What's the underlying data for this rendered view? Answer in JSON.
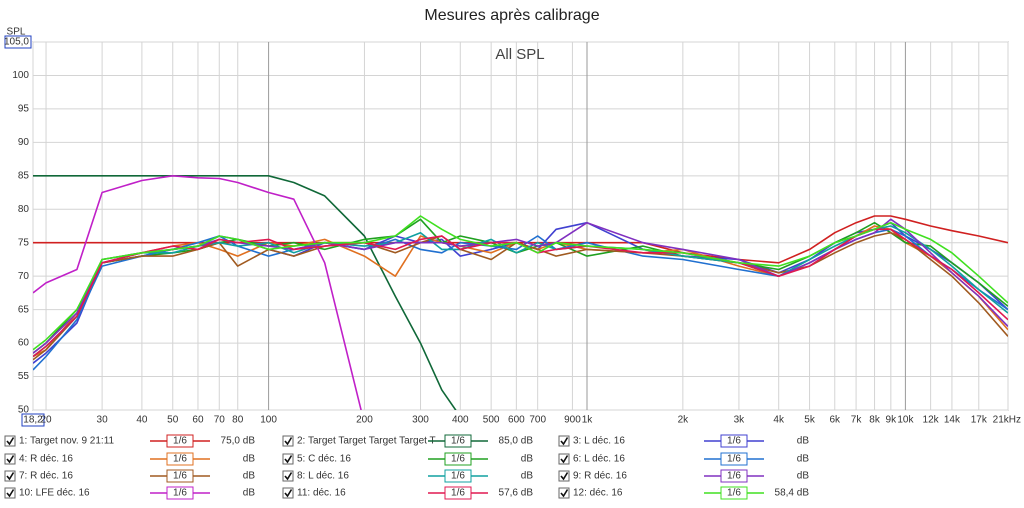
{
  "chart_data": {
    "type": "line",
    "title": "Mesures après calibrage",
    "plot_title": "All SPL",
    "y_label": "SPL",
    "log_x": true,
    "grid": true,
    "xlim": [
      18.2,
      21000
    ],
    "ylim": [
      50,
      105
    ],
    "xticks": [
      {
        "value": 18.2,
        "label": "18,2"
      },
      20,
      30,
      40,
      50,
      60,
      70,
      80,
      100,
      200,
      300,
      400,
      500,
      600,
      700,
      900,
      {
        "value": 1000,
        "label": "1k"
      },
      {
        "value": 2000,
        "label": "2k"
      },
      {
        "value": 3000,
        "label": "3k"
      },
      {
        "value": 4000,
        "label": "4k"
      },
      {
        "value": 5000,
        "label": "5k"
      },
      {
        "value": 6000,
        "label": "6k"
      },
      {
        "value": 7000,
        "label": "7k"
      },
      {
        "value": 8000,
        "label": "8k"
      },
      {
        "value": 9000,
        "label": "9k"
      },
      {
        "value": 10000,
        "label": "10k"
      },
      {
        "value": 12000,
        "label": "12k"
      },
      {
        "value": 14000,
        "label": "14k"
      },
      {
        "value": 17000,
        "label": "17k"
      },
      {
        "value": 21000,
        "label": "21kHz"
      }
    ],
    "yticks": [
      50,
      55,
      60,
      65,
      70,
      75,
      80,
      85,
      90,
      95,
      100,
      {
        "value": 105,
        "label": "105,0"
      }
    ],
    "x": [
      18.2,
      20,
      25,
      30,
      40,
      50,
      60,
      70,
      80,
      100,
      120,
      150,
      200,
      250,
      300,
      350,
      400,
      500,
      600,
      700,
      800,
      1000,
      1500,
      2000,
      3000,
      4000,
      5000,
      6000,
      7000,
      8000,
      9000,
      10000,
      12000,
      14000,
      17000,
      21000
    ],
    "series": [
      {
        "name": "1: Target nov. 9 21:11",
        "color": "#d02020",
        "smoothing": "1/6",
        "level": "75,0 dB",
        "values": [
          75,
          75,
          75,
          75,
          75,
          75,
          75,
          75,
          75,
          75,
          75,
          75,
          75,
          75,
          75,
          75,
          75,
          75,
          75,
          75,
          75,
          75,
          75,
          73.5,
          72.5,
          72,
          74,
          76.5,
          78,
          79,
          79,
          78.5,
          77.5,
          76.8,
          76,
          75
        ]
      },
      {
        "name": "2: Target Target Target Target T",
        "color": "#106838",
        "smoothing": "1/6",
        "level": "85,0 dB",
        "values": [
          85,
          85,
          85,
          85,
          85,
          85,
          85,
          85,
          85,
          85,
          84,
          82,
          76,
          67,
          60,
          53,
          49,
          null,
          null,
          null,
          null,
          null,
          null,
          null,
          null,
          null,
          null,
          null,
          null,
          null,
          null,
          null,
          null,
          null,
          null,
          null
        ]
      },
      {
        "name": "3: L déc. 16",
        "color": "#4040d0",
        "smoothing": "1/6",
        "level": "dB",
        "values": [
          57,
          58.5,
          63,
          72,
          73,
          74,
          74.5,
          76,
          75.5,
          74,
          73,
          75,
          74,
          76,
          75,
          75.5,
          73,
          74,
          75,
          74,
          77,
          78,
          74,
          73,
          72.5,
          70.5,
          72.5,
          75,
          76.5,
          77,
          78,
          76,
          74,
          72,
          69,
          65
        ]
      },
      {
        "name": "4: R déc. 16",
        "color": "#e07020",
        "smoothing": "1/6",
        "level": "dB",
        "values": [
          58,
          59,
          64.5,
          72.5,
          73.5,
          74.5,
          75,
          74,
          73,
          75,
          74.5,
          75.5,
          73,
          70,
          76,
          75,
          74.5,
          73.5,
          75,
          74,
          75,
          74,
          73.5,
          74,
          71.5,
          70,
          72,
          74,
          76,
          77.5,
          77,
          75,
          73,
          70.5,
          67,
          62
        ]
      },
      {
        "name": "5: C déc. 16",
        "color": "#20a020",
        "smoothing": "1/6",
        "level": "dB",
        "values": [
          58.5,
          60,
          65,
          72,
          73,
          73.5,
          74,
          75,
          75.5,
          74.5,
          75,
          74,
          75.5,
          76,
          78.5,
          75,
          76,
          75,
          73.5,
          74.5,
          75,
          73,
          74.5,
          73,
          72,
          71,
          73,
          75,
          76.5,
          78,
          76.5,
          75,
          74.5,
          72,
          69,
          65.5
        ]
      },
      {
        "name": "6: L déc. 16",
        "color": "#2070d0",
        "smoothing": "1/6",
        "level": "dB",
        "values": [
          56,
          58,
          63.5,
          71.5,
          73,
          74,
          75,
          76,
          74.5,
          73,
          74,
          75,
          74,
          75.5,
          74,
          73.5,
          75,
          74.5,
          74,
          76,
          74,
          75,
          73,
          72.5,
          71,
          70,
          72,
          74,
          75.5,
          76.5,
          77,
          76,
          73,
          71,
          68,
          65
        ]
      },
      {
        "name": "7: R déc. 16",
        "color": "#a05a20",
        "smoothing": "1/6",
        "level": "dB",
        "values": [
          57.5,
          59,
          64,
          72,
          73,
          73,
          74,
          75,
          71.5,
          74,
          73,
          74.5,
          75,
          73.5,
          75,
          76,
          74,
          72.5,
          75,
          74,
          73,
          74,
          73.5,
          73,
          72,
          70.5,
          71.5,
          73.5,
          75,
          76,
          76.5,
          75.5,
          72.5,
          70,
          66,
          61
        ]
      },
      {
        "name": "8: L déc. 16",
        "color": "#10a0a0",
        "smoothing": "1/6",
        "level": "dB",
        "values": [
          58,
          59.5,
          64,
          72.5,
          73.5,
          73.5,
          74.5,
          75,
          74.5,
          75,
          73.5,
          75,
          74.5,
          75,
          76.5,
          74,
          74,
          75.5,
          73.5,
          75,
          74,
          74.5,
          74,
          73,
          72,
          70,
          72.5,
          74.5,
          76,
          77,
          77.5,
          76.5,
          74,
          71.5,
          68,
          64.5
        ]
      },
      {
        "name": "9: R déc. 16",
        "color": "#8030c0",
        "smoothing": "1/6",
        "level": "dB",
        "values": [
          58.5,
          60,
          64.5,
          72,
          73.5,
          74,
          74.5,
          75.5,
          75,
          74.5,
          74,
          75,
          74,
          75,
          75,
          75,
          74.5,
          75,
          75.5,
          74.5,
          75,
          78,
          75,
          74,
          72.5,
          70,
          72,
          74,
          75.5,
          76.5,
          78.5,
          77,
          73.5,
          70.5,
          67,
          62.5
        ]
      },
      {
        "name": "10: LFE déc. 16",
        "color": "#c020c8",
        "smoothing": "1/6",
        "level": "dB",
        "values": [
          67.5,
          69,
          71,
          82.5,
          84.3,
          85,
          84.7,
          84.6,
          84,
          82.5,
          81.5,
          72,
          48,
          null,
          null,
          null,
          null,
          null,
          null,
          null,
          null,
          null,
          null,
          null,
          null,
          null,
          null,
          null,
          null,
          null,
          null,
          null,
          null,
          null,
          null,
          null
        ]
      },
      {
        "name": "11: déc. 16",
        "color": "#e01850",
        "smoothing": "1/6",
        "level": "57,6 dB",
        "values": [
          58,
          59.5,
          64,
          72,
          73.5,
          74.5,
          74,
          75.5,
          75,
          75.5,
          74,
          74.5,
          75,
          74,
          75.5,
          76,
          74,
          75,
          75,
          73.5,
          74,
          74.5,
          73.5,
          73.5,
          72,
          70,
          71.5,
          74,
          76,
          77,
          77,
          75.5,
          73,
          71,
          67.5,
          63.5
        ]
      },
      {
        "name": "12: déc. 16",
        "color": "#40e020",
        "smoothing": "1/6",
        "level": "58,4 dB",
        "values": [
          59,
          60.5,
          65,
          72.5,
          73.5,
          74,
          74.5,
          76,
          75.5,
          74,
          74.5,
          75,
          75,
          76,
          79,
          77,
          75.5,
          74.5,
          75,
          73.5,
          75,
          74.5,
          74,
          73.5,
          72,
          71.5,
          73,
          75,
          76,
          77,
          78,
          77,
          75.5,
          73.5,
          70,
          66
        ]
      }
    ]
  }
}
